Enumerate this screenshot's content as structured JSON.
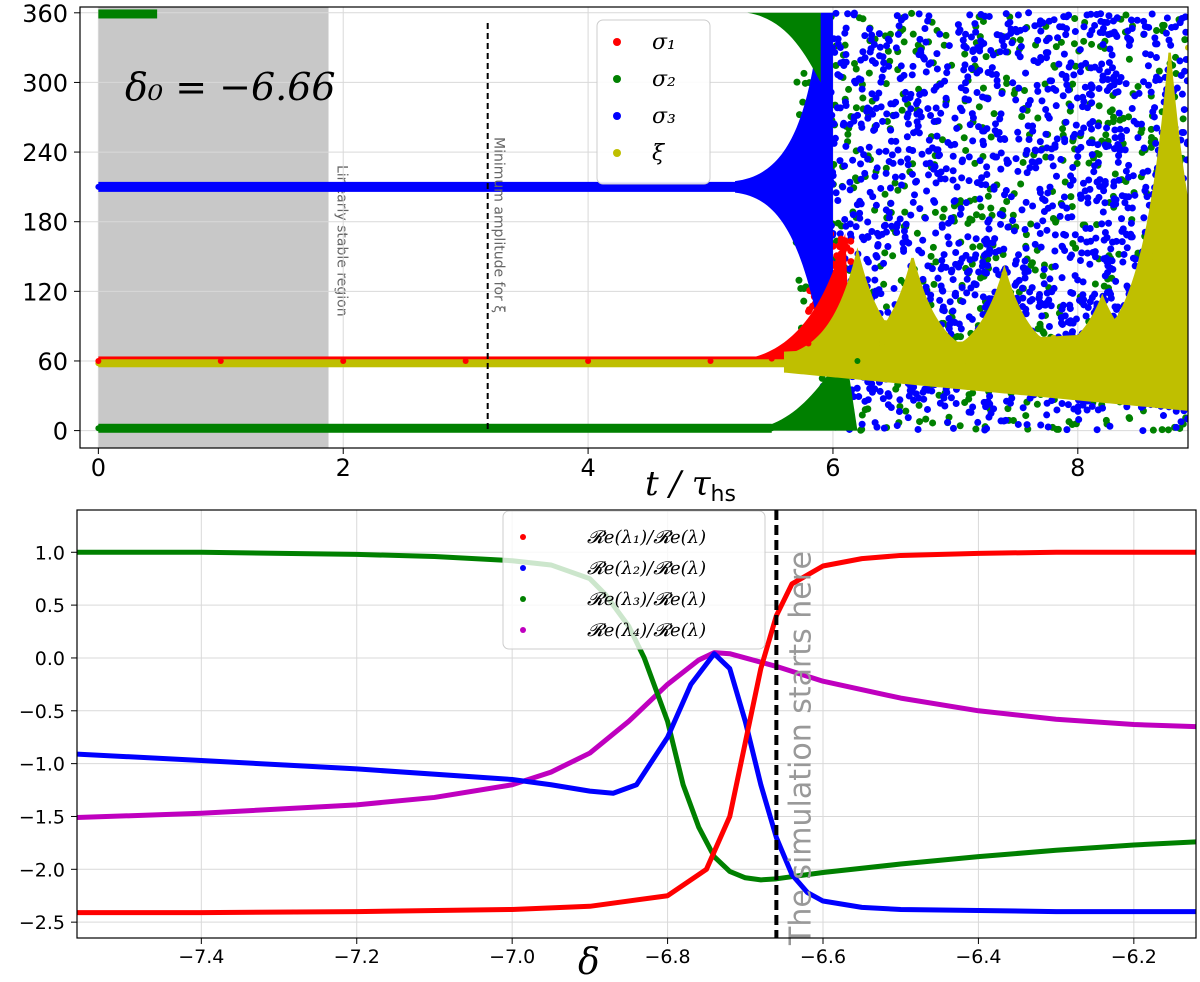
{
  "colors": {
    "sigma1": "#ff0000",
    "sigma2": "#008000",
    "sigma3": "#0000ff",
    "xi": "#bfbf00",
    "re1": "#ff0000",
    "re2": "#0000ff",
    "re3": "#008000",
    "re4": "#bf00bf",
    "shade": "#c8c8c8",
    "grid": "#d9d9d9"
  },
  "chart_data": [
    {
      "type": "scatter",
      "xlabel": "t / τ_hs",
      "ylabel": "",
      "xlim": [
        -0.15,
        8.9
      ],
      "ylim": [
        -15,
        365
      ],
      "xticks": [
        0,
        2,
        4,
        6,
        8
      ],
      "yticks": [
        0,
        60,
        120,
        180,
        240,
        300,
        360
      ],
      "annotation": "δ₀ = −6.66",
      "regions": [
        {
          "label": "Linearly stable region",
          "x0": 0,
          "x1": 1.88
        }
      ],
      "vlines": [
        {
          "label": "Minimum amplitude for ξ",
          "x": 3.18
        }
      ],
      "legend_position": "top-center",
      "series": [
        {
          "name": "σ₁",
          "color_key": "sigma1",
          "x": [
            0,
            1,
            2,
            3,
            4,
            5,
            5.5,
            5.8,
            6.0,
            6.1
          ],
          "y": [
            60,
            60,
            60,
            60,
            60,
            60,
            62,
            75,
            110,
            160
          ]
        },
        {
          "name": "σ₂",
          "color_key": "sigma2",
          "x": [
            0,
            0.5,
            2,
            4,
            5,
            5.5,
            5.8,
            6.0,
            6.2
          ],
          "y": [
            2,
            1,
            1,
            1,
            1,
            2,
            10,
            30,
            60
          ]
        },
        {
          "name": "σ₃",
          "color_key": "sigma3",
          "x": [
            0,
            1,
            2,
            3,
            4,
            5,
            5.3,
            5.6,
            5.8,
            6.0
          ],
          "y": [
            210,
            210,
            210,
            210,
            210,
            210,
            212,
            225,
            260,
            330
          ]
        },
        {
          "name": "ξ",
          "color_key": "xi",
          "x": [
            0,
            1,
            2,
            3,
            4,
            5,
            5.6,
            6.0,
            6.2,
            6.4,
            6.65,
            6.9,
            7.1,
            7.4,
            7.8,
            8.2,
            8.6,
            8.9
          ],
          "y": [
            58,
            58,
            58,
            58,
            58,
            58,
            58,
            65,
            145,
            75,
            135,
            80,
            60,
            135,
            80,
            110,
            150,
            330
          ]
        }
      ]
    },
    {
      "type": "line",
      "xlabel": "δ",
      "ylabel": "",
      "xlim": [
        -7.56,
        -6.12
      ],
      "ylim": [
        -2.65,
        1.4
      ],
      "xticks": [
        -7.4,
        -7.2,
        -7.0,
        -6.8,
        -6.6,
        -6.4,
        -6.2
      ],
      "yticks": [
        -2.5,
        -2.0,
        -1.5,
        -1.0,
        -0.5,
        0.0,
        0.5,
        1.0
      ],
      "xtick_labels": [
        "−7.4",
        "−7.2",
        "−7.0",
        "−6.8",
        "−6.6",
        "−6.4",
        "−6.2"
      ],
      "ytick_labels": [
        "−2.5",
        "−2.0",
        "−1.5",
        "−1.0",
        "−0.5",
        "0.0",
        "0.5",
        "1.0"
      ],
      "vlines": [
        {
          "label": "The simulation starts here",
          "x": -6.66
        }
      ],
      "legend_position": "top-center",
      "series": [
        {
          "name": "𝓡e(λ₁)/𝓡e(λ)",
          "color_key": "re1",
          "x": [
            -7.56,
            -7.4,
            -7.2,
            -7.0,
            -6.9,
            -6.8,
            -6.75,
            -6.72,
            -6.7,
            -6.68,
            -6.66,
            -6.64,
            -6.6,
            -6.55,
            -6.5,
            -6.4,
            -6.3,
            -6.2,
            -6.12
          ],
          "y": [
            -2.41,
            -2.41,
            -2.4,
            -2.38,
            -2.35,
            -2.25,
            -2.0,
            -1.5,
            -0.8,
            -0.1,
            0.4,
            0.7,
            0.87,
            0.94,
            0.97,
            0.99,
            1.0,
            1.0,
            1.0
          ]
        },
        {
          "name": "𝓡e(λ₂)/𝓡e(λ)",
          "color_key": "re2",
          "x": [
            -7.56,
            -7.4,
            -7.2,
            -7.0,
            -6.95,
            -6.9,
            -6.87,
            -6.84,
            -6.8,
            -6.77,
            -6.74,
            -6.72,
            -6.7,
            -6.68,
            -6.66,
            -6.64,
            -6.62,
            -6.6,
            -6.55,
            -6.5,
            -6.4,
            -6.3,
            -6.2,
            -6.12
          ],
          "y": [
            -0.91,
            -0.97,
            -1.05,
            -1.15,
            -1.2,
            -1.26,
            -1.28,
            -1.2,
            -0.75,
            -0.25,
            0.04,
            -0.1,
            -0.6,
            -1.2,
            -1.7,
            -2.05,
            -2.22,
            -2.3,
            -2.36,
            -2.38,
            -2.39,
            -2.4,
            -2.4,
            -2.4
          ]
        },
        {
          "name": "𝓡e(λ₃)/𝓡e(λ)",
          "color_key": "re3",
          "x": [
            -7.56,
            -7.4,
            -7.2,
            -7.1,
            -7.0,
            -6.95,
            -6.9,
            -6.88,
            -6.85,
            -6.83,
            -6.8,
            -6.78,
            -6.76,
            -6.74,
            -6.72,
            -6.7,
            -6.68,
            -6.66,
            -6.64,
            -6.6,
            -6.5,
            -6.4,
            -6.3,
            -6.2,
            -6.12
          ],
          "y": [
            1.0,
            1.0,
            0.98,
            0.96,
            0.92,
            0.88,
            0.75,
            0.6,
            0.3,
            0.0,
            -0.6,
            -1.2,
            -1.6,
            -1.88,
            -2.02,
            -2.08,
            -2.1,
            -2.09,
            -2.07,
            -2.03,
            -1.95,
            -1.88,
            -1.82,
            -1.77,
            -1.74
          ]
        },
        {
          "name": "𝓡e(λ₄)/𝓡e(λ)",
          "color_key": "re4",
          "x": [
            -7.56,
            -7.4,
            -7.2,
            -7.1,
            -7.0,
            -6.95,
            -6.9,
            -6.85,
            -6.8,
            -6.76,
            -6.74,
            -6.72,
            -6.7,
            -6.66,
            -6.6,
            -6.5,
            -6.4,
            -6.3,
            -6.2,
            -6.12
          ],
          "y": [
            -1.51,
            -1.47,
            -1.39,
            -1.32,
            -1.2,
            -1.08,
            -0.9,
            -0.6,
            -0.25,
            -0.02,
            0.05,
            0.04,
            0.0,
            -0.08,
            -0.22,
            -0.38,
            -0.5,
            -0.58,
            -0.63,
            -0.65
          ]
        }
      ]
    }
  ]
}
